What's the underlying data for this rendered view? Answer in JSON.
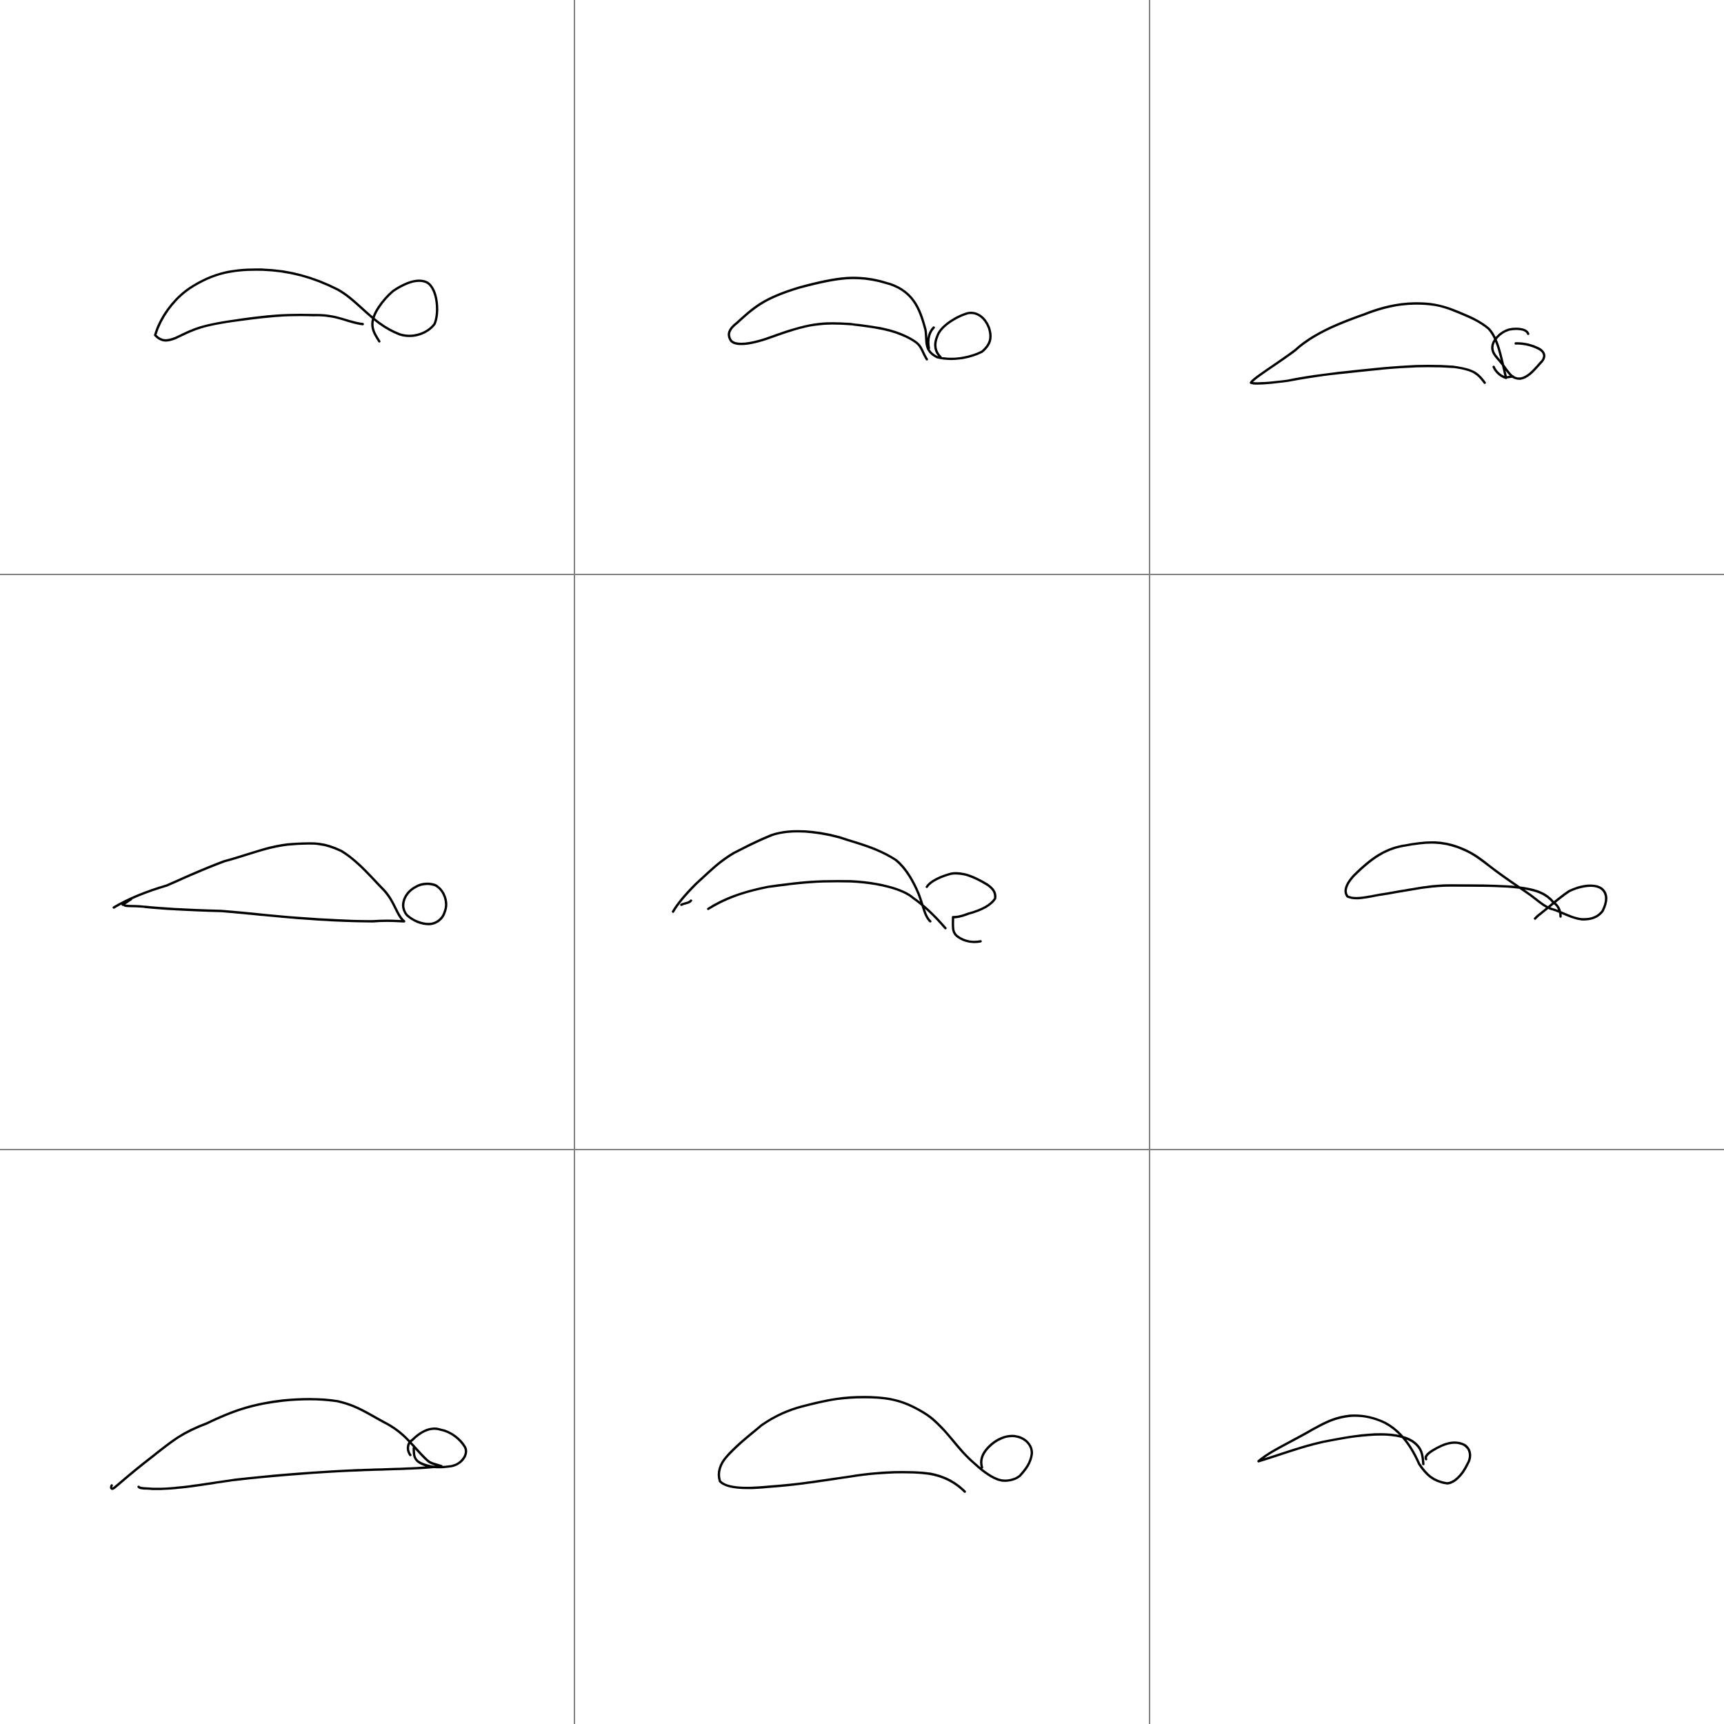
{
  "grid": {
    "rows": 3,
    "columns": 3,
    "divider_color": "#7f7f7f",
    "background_color": "#ffffff",
    "stroke_color": "#000000"
  },
  "sketches": [
    {
      "subject": "snail-doodle",
      "row": 1,
      "column": 1
    },
    {
      "subject": "snail-doodle",
      "row": 1,
      "column": 2
    },
    {
      "subject": "snail-doodle",
      "row": 1,
      "column": 3
    },
    {
      "subject": "snail-doodle",
      "row": 2,
      "column": 1
    },
    {
      "subject": "snail-doodle",
      "row": 2,
      "column": 2
    },
    {
      "subject": "snail-doodle",
      "row": 2,
      "column": 3
    },
    {
      "subject": "snail-doodle",
      "row": 3,
      "column": 1
    },
    {
      "subject": "snail-doodle",
      "row": 3,
      "column": 2
    },
    {
      "subject": "snail-doodle",
      "row": 3,
      "column": 3
    }
  ]
}
